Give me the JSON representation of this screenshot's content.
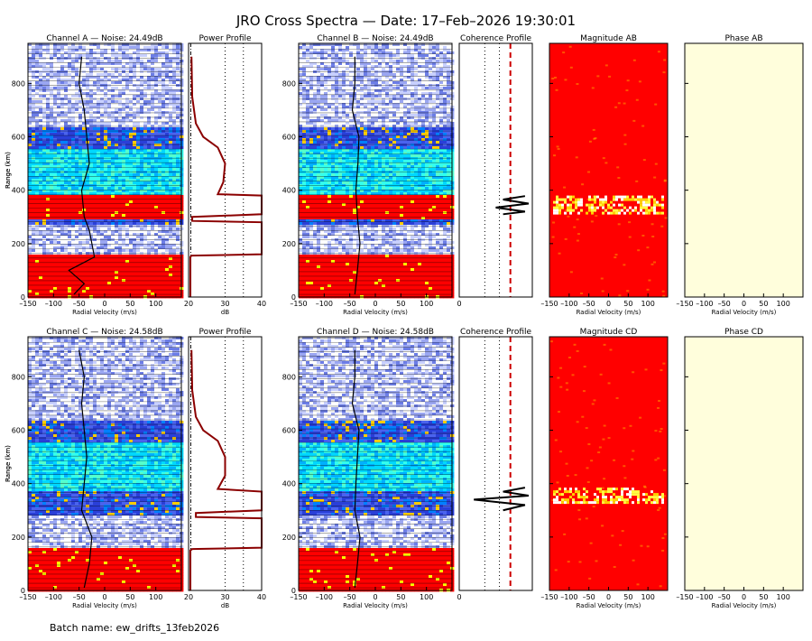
{
  "title": "JRO Cross Spectra — Date: 17–Feb–2026 19:30:01",
  "footer": "Batch name: ew_drifts_13feb2026",
  "colors": {
    "profile_line": "#8b0000",
    "coherence_ref": "#cc0000",
    "magnitude_bg": "#ff0000",
    "phase_bg": "#fffedc"
  },
  "chart_data": [
    {
      "type": "heatmap",
      "name": "channel-a-spectrum",
      "title": "Channel A — Noise: 24.49dB",
      "xlabel": "Radial Velocity (m/s)",
      "ylabel": "Range (km)",
      "xlim": [
        -150,
        150
      ],
      "ylim": [
        0,
        950
      ],
      "xticks": [
        "–150",
        "–100",
        "–50",
        "0",
        "50",
        "100"
      ],
      "yticks": [
        "0",
        "200",
        "400",
        "600",
        "800"
      ],
      "bands": [
        {
          "from": 0,
          "to": 160,
          "level": "strong"
        },
        {
          "from": 160,
          "to": 280,
          "level": "low"
        },
        {
          "from": 280,
          "to": 300,
          "level": "mid"
        },
        {
          "from": 300,
          "to": 385,
          "level": "strong"
        },
        {
          "from": 385,
          "to": 560,
          "level": "high"
        },
        {
          "from": 560,
          "to": 640,
          "level": "mid"
        },
        {
          "from": 640,
          "to": 950,
          "level": "low"
        }
      ],
      "doppler_trace": [
        [
          10,
          -60
        ],
        [
          50,
          -40
        ],
        [
          100,
          -70
        ],
        [
          150,
          -20
        ],
        [
          250,
          -30
        ],
        [
          300,
          -40
        ],
        [
          400,
          -45
        ],
        [
          500,
          -30
        ],
        [
          600,
          -35
        ],
        [
          700,
          -40
        ],
        [
          800,
          -50
        ],
        [
          900,
          -45
        ]
      ]
    },
    {
      "type": "line",
      "name": "power-profile-a",
      "title": "Power Profile",
      "xlabel": "dB",
      "xlim": [
        20,
        40
      ],
      "xticks": [
        "20",
        "30",
        "40"
      ],
      "ylim": [
        0,
        950
      ],
      "x": [
        20.5,
        20.5,
        20.8,
        40,
        40,
        21,
        21,
        40,
        40,
        28,
        29.5,
        30,
        28,
        24,
        22,
        21,
        20.8
      ],
      "y": [
        0,
        150,
        155,
        160,
        280,
        285,
        300,
        310,
        380,
        385,
        430,
        500,
        560,
        600,
        650,
        750,
        900
      ]
    },
    {
      "type": "heatmap",
      "name": "channel-b-spectrum",
      "title": "Channel B — Noise: 24.49dB",
      "xlabel": "Radial Velocity (m/s)",
      "ylabel": "Range (km)",
      "xlim": [
        -150,
        150
      ],
      "ylim": [
        0,
        950
      ],
      "xticks": [
        "–150",
        "–100",
        "–50",
        "0",
        "50",
        "100"
      ],
      "yticks": [
        "0",
        "200",
        "400",
        "600",
        "800"
      ],
      "bands": [
        {
          "from": 0,
          "to": 160,
          "level": "strong"
        },
        {
          "from": 160,
          "to": 280,
          "level": "low"
        },
        {
          "from": 280,
          "to": 300,
          "level": "mid"
        },
        {
          "from": 300,
          "to": 385,
          "level": "strong"
        },
        {
          "from": 385,
          "to": 560,
          "level": "high"
        },
        {
          "from": 560,
          "to": 640,
          "level": "mid"
        },
        {
          "from": 640,
          "to": 950,
          "level": "low"
        }
      ],
      "doppler_trace": [
        [
          10,
          -40
        ],
        [
          100,
          -35
        ],
        [
          200,
          -30
        ],
        [
          300,
          -35
        ],
        [
          400,
          -38
        ],
        [
          500,
          -34
        ],
        [
          600,
          -32
        ],
        [
          700,
          -45
        ],
        [
          800,
          -40
        ],
        [
          900,
          -40
        ]
      ]
    },
    {
      "type": "line",
      "name": "coherence-profile-ab",
      "title": "Coherence Profile",
      "xlim": [
        0,
        1
      ],
      "xticks": [
        "0"
      ],
      "ylim": [
        0,
        950
      ],
      "reference": 0.7,
      "x": [
        0.6,
        0.9,
        0.5,
        0.95,
        0.6,
        0.9
      ],
      "y": [
        310,
        320,
        335,
        350,
        365,
        378
      ]
    },
    {
      "type": "heatmap",
      "name": "magnitude-ab",
      "title": "Magnitude AB",
      "xlabel": "Radial Velocity (m/s)",
      "xlim": [
        -150,
        150
      ],
      "xticks": [
        "–150",
        "–100",
        "–50",
        "0",
        "50",
        "100"
      ],
      "highlight_range": [
        315,
        380
      ]
    },
    {
      "type": "heatmap",
      "name": "phase-ab",
      "title": "Phase AB",
      "xlabel": "Radial Velocity (m/s)",
      "xlim": [
        -150,
        150
      ],
      "xticks": [
        "–150",
        "–100",
        "–50",
        "0",
        "50",
        "100"
      ]
    },
    {
      "type": "heatmap",
      "name": "channel-c-spectrum",
      "title": "Channel C — Noise: 24.58dB",
      "xlabel": "Radial Velocity (m/s)",
      "ylabel": "Range (km)",
      "xlim": [
        -150,
        150
      ],
      "ylim": [
        0,
        950
      ],
      "xticks": [
        "–150",
        "–100",
        "–50",
        "0",
        "50",
        "100"
      ],
      "yticks": [
        "0",
        "200",
        "400",
        "600",
        "800"
      ],
      "bands": [
        {
          "from": 0,
          "to": 160,
          "level": "strong"
        },
        {
          "from": 160,
          "to": 290,
          "level": "low"
        },
        {
          "from": 290,
          "to": 380,
          "level": "mid"
        },
        {
          "from": 380,
          "to": 560,
          "level": "high"
        },
        {
          "from": 560,
          "to": 640,
          "level": "mid"
        },
        {
          "from": 640,
          "to": 950,
          "level": "low"
        }
      ],
      "doppler_trace": [
        [
          10,
          -40
        ],
        [
          100,
          -30
        ],
        [
          200,
          -25
        ],
        [
          300,
          -45
        ],
        [
          400,
          -40
        ],
        [
          500,
          -35
        ],
        [
          600,
          -40
        ],
        [
          700,
          -45
        ],
        [
          800,
          -40
        ],
        [
          900,
          -50
        ]
      ]
    },
    {
      "type": "line",
      "name": "power-profile-c",
      "title": "Power Profile",
      "xlabel": "dB",
      "xlim": [
        20,
        40
      ],
      "xticks": [
        "20",
        "30",
        "40"
      ],
      "ylim": [
        0,
        950
      ],
      "x": [
        20.5,
        20.5,
        21,
        40,
        40,
        22,
        22,
        40,
        40,
        28,
        30,
        30,
        28,
        24,
        22,
        21,
        20.8
      ],
      "y": [
        0,
        150,
        155,
        160,
        270,
        275,
        290,
        300,
        370,
        380,
        430,
        500,
        560,
        600,
        650,
        750,
        900
      ]
    },
    {
      "type": "heatmap",
      "name": "channel-d-spectrum",
      "title": "Channel D — Noise: 24.58dB",
      "xlabel": "Radial Velocity (m/s)",
      "ylabel": "Range (km)",
      "xlim": [
        -150,
        150
      ],
      "ylim": [
        0,
        950
      ],
      "xticks": [
        "–150",
        "–100",
        "–50",
        "0",
        "50",
        "100"
      ],
      "yticks": [
        "0",
        "200",
        "400",
        "600",
        "800"
      ],
      "bands": [
        {
          "from": 0,
          "to": 160,
          "level": "strong"
        },
        {
          "from": 160,
          "to": 290,
          "level": "low"
        },
        {
          "from": 290,
          "to": 380,
          "level": "mid"
        },
        {
          "from": 380,
          "to": 560,
          "level": "high"
        },
        {
          "from": 560,
          "to": 640,
          "level": "mid"
        },
        {
          "from": 640,
          "to": 950,
          "level": "low"
        }
      ],
      "doppler_trace": [
        [
          10,
          -40
        ],
        [
          100,
          -35
        ],
        [
          200,
          -30
        ],
        [
          300,
          -40
        ],
        [
          400,
          -38
        ],
        [
          500,
          -35
        ],
        [
          600,
          -32
        ],
        [
          700,
          -45
        ],
        [
          800,
          -40
        ],
        [
          900,
          -40
        ]
      ]
    },
    {
      "type": "line",
      "name": "coherence-profile-cd",
      "title": "Coherence Profile",
      "xlim": [
        0,
        1
      ],
      "xticks": [
        "0"
      ],
      "ylim": [
        0,
        950
      ],
      "reference": 0.7,
      "x": [
        0.6,
        0.9,
        0.2,
        0.95,
        0.6,
        0.9
      ],
      "y": [
        300,
        320,
        340,
        355,
        370,
        385
      ]
    },
    {
      "type": "heatmap",
      "name": "magnitude-cd",
      "title": "Magnitude CD",
      "xlabel": "Radial Velocity (m/s)",
      "xlim": [
        -150,
        150
      ],
      "xticks": [
        "–150",
        "–100",
        "–50",
        "0",
        "50",
        "100"
      ],
      "highlight_range": [
        330,
        385
      ]
    },
    {
      "type": "heatmap",
      "name": "phase-cd",
      "title": "Phase CD",
      "xlabel": "Radial Velocity (m/s)",
      "xlim": [
        -150,
        150
      ],
      "xticks": [
        "–150",
        "–100",
        "–50",
        "0",
        "50",
        "100"
      ]
    }
  ]
}
